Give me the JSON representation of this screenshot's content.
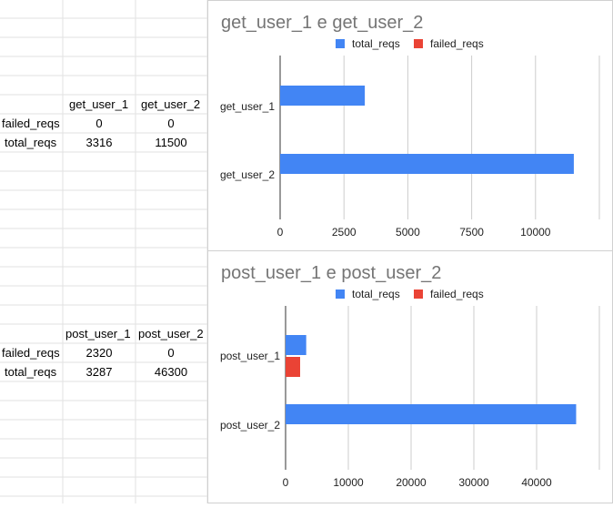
{
  "sheet": {
    "get_table": {
      "col_headers": [
        "get_user_1",
        "get_user_2"
      ],
      "rows": [
        {
          "label": "failed_reqs",
          "values": [
            "0",
            "0"
          ]
        },
        {
          "label": "total_reqs",
          "values": [
            "3316",
            "11500"
          ]
        }
      ]
    },
    "post_table": {
      "col_headers": [
        "post_user_1",
        "post_user_2"
      ],
      "rows": [
        {
          "label": "failed_reqs",
          "values": [
            "2320",
            "0"
          ]
        },
        {
          "label": "total_reqs",
          "values": [
            "3287",
            "46300"
          ]
        }
      ]
    }
  },
  "chart_data": [
    {
      "type": "bar",
      "orientation": "horizontal",
      "title": "get_user_1 e get_user_2",
      "categories": [
        "get_user_1",
        "get_user_2"
      ],
      "series": [
        {
          "name": "total_reqs",
          "values": [
            3316,
            11500
          ],
          "color": "#4285f4"
        },
        {
          "name": "failed_reqs",
          "values": [
            0,
            0
          ],
          "color": "#ea4335"
        }
      ],
      "xlim": [
        0,
        12500
      ],
      "xticks": [
        0,
        2500,
        5000,
        7500,
        10000
      ],
      "grid": true,
      "legend": "top"
    },
    {
      "type": "bar",
      "orientation": "horizontal",
      "title": "post_user_1 e post_user_2",
      "categories": [
        "post_user_1",
        "post_user_2"
      ],
      "series": [
        {
          "name": "total_reqs",
          "values": [
            3287,
            46300
          ],
          "color": "#4285f4"
        },
        {
          "name": "failed_reqs",
          "values": [
            2320,
            0
          ],
          "color": "#ea4335"
        }
      ],
      "xlim": [
        0,
        50000
      ],
      "xticks": [
        0,
        10000,
        20000,
        30000,
        40000
      ],
      "grid": true,
      "legend": "top"
    }
  ]
}
